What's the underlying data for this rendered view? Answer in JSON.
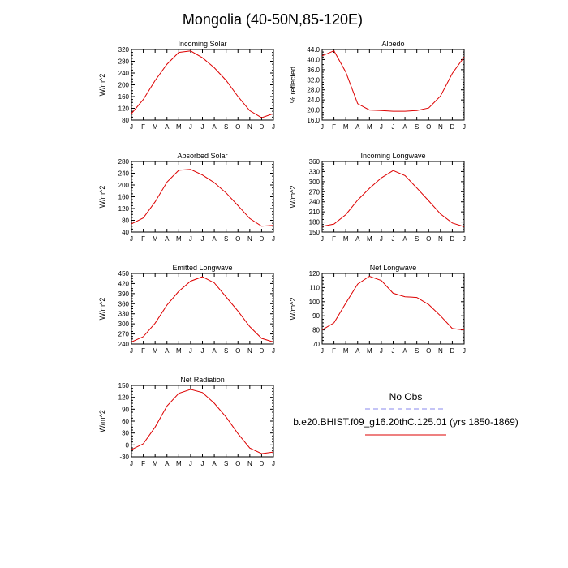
{
  "title": "Mongolia (40-50N,85-120E)",
  "legend": {
    "placement": "right-of-bottom-panel",
    "entries": [
      {
        "label": "No Obs",
        "color": "#8888ee",
        "dashed": true
      },
      {
        "label": "b.e20.BHIST.f09_g16.20thC.125.01 (yrs 1850-1869)",
        "color": "#dd0000",
        "dashed": false
      }
    ]
  },
  "chart_data": [
    {
      "type": "line",
      "title": "Incoming Solar",
      "ylabel": "W/m^2",
      "x": [
        "J",
        "F",
        "M",
        "A",
        "M",
        "J",
        "J",
        "A",
        "S",
        "O",
        "N",
        "D",
        "J"
      ],
      "ylim": [
        80,
        320
      ],
      "yticks": [
        "80",
        "120",
        "160",
        "200",
        "240",
        "280",
        "320"
      ],
      "series": [
        {
          "name": "b.e20.BHIST.f09_g16.20thC.125.01 (yrs 1850-1869)",
          "color": "#dd0000",
          "values": [
            102,
            150,
            215,
            270,
            310,
            315,
            292,
            258,
            215,
            160,
            112,
            88,
            102
          ]
        }
      ]
    },
    {
      "type": "line",
      "title": "Albedo",
      "ylabel": "% reflected",
      "x": [
        "J",
        "F",
        "M",
        "A",
        "M",
        "J",
        "J",
        "A",
        "S",
        "O",
        "N",
        "D",
        "J"
      ],
      "ylim": [
        16.0,
        44.0
      ],
      "yticks": [
        "16.0",
        "20.0",
        "24.0",
        "28.0",
        "32.0",
        "36.0",
        "40.0",
        "44.0"
      ],
      "series": [
        {
          "name": "b.e20.BHIST.f09_g16.20thC.125.01 (yrs 1850-1869)",
          "color": "#dd0000",
          "values": [
            41.5,
            43.5,
            35.0,
            22.5,
            20.0,
            19.8,
            19.5,
            19.5,
            19.8,
            20.8,
            25.5,
            34.5,
            41.0
          ]
        }
      ]
    },
    {
      "type": "line",
      "title": "Absorbed Solar",
      "ylabel": "W/m^2",
      "x": [
        "J",
        "F",
        "M",
        "A",
        "M",
        "J",
        "J",
        "A",
        "S",
        "O",
        "N",
        "D",
        "J"
      ],
      "ylim": [
        40,
        280
      ],
      "yticks": [
        "40",
        "80",
        "120",
        "160",
        "200",
        "240",
        "280"
      ],
      "series": [
        {
          "name": "b.e20.BHIST.f09_g16.20thC.125.01 (yrs 1850-1869)",
          "color": "#dd0000",
          "values": [
            68,
            88,
            143,
            210,
            250,
            253,
            234,
            208,
            173,
            130,
            86,
            60,
            63
          ]
        }
      ]
    },
    {
      "type": "line",
      "title": "Incoming Longwave",
      "ylabel": "W/m^2",
      "x": [
        "J",
        "F",
        "M",
        "A",
        "M",
        "J",
        "J",
        "A",
        "S",
        "O",
        "N",
        "D",
        "J"
      ],
      "ylim": [
        150,
        360
      ],
      "yticks": [
        "150",
        "180",
        "210",
        "240",
        "270",
        "300",
        "330",
        "360"
      ],
      "series": [
        {
          "name": "b.e20.BHIST.f09_g16.20thC.125.01 (yrs 1850-1869)",
          "color": "#dd0000",
          "values": [
            167,
            174,
            202,
            245,
            280,
            311,
            333,
            318,
            281,
            243,
            204,
            177,
            166
          ]
        }
      ]
    },
    {
      "type": "line",
      "title": "Emitted Longwave",
      "ylabel": "W/m^2",
      "x": [
        "J",
        "F",
        "M",
        "A",
        "M",
        "J",
        "J",
        "A",
        "S",
        "O",
        "N",
        "D",
        "J"
      ],
      "ylim": [
        240,
        450
      ],
      "yticks": [
        "240",
        "270",
        "300",
        "330",
        "360",
        "390",
        "420",
        "450"
      ],
      "series": [
        {
          "name": "b.e20.BHIST.f09_g16.20thC.125.01 (yrs 1850-1869)",
          "color": "#dd0000",
          "values": [
            246,
            262,
            302,
            356,
            397,
            427,
            440,
            422,
            380,
            338,
            292,
            257,
            246
          ]
        }
      ]
    },
    {
      "type": "line",
      "title": "Net Longwave",
      "ylabel": "W/m^2",
      "x": [
        "J",
        "F",
        "M",
        "A",
        "M",
        "J",
        "J",
        "A",
        "S",
        "O",
        "N",
        "D",
        "J"
      ],
      "ylim": [
        70,
        120
      ],
      "yticks": [
        "70",
        "80",
        "90",
        "100",
        "110",
        "120"
      ],
      "series": [
        {
          "name": "b.e20.BHIST.f09_g16.20thC.125.01 (yrs 1850-1869)",
          "color": "#dd0000",
          "values": [
            80,
            85,
            99,
            112.5,
            118,
            115,
            106,
            103.5,
            103,
            98,
            90,
            81,
            80
          ]
        }
      ]
    },
    {
      "type": "line",
      "title": "Net Radiation",
      "ylabel": "W/m^2",
      "x": [
        "J",
        "F",
        "M",
        "A",
        "M",
        "J",
        "J",
        "A",
        "S",
        "O",
        "N",
        "D",
        "J"
      ],
      "ylim": [
        -30,
        150
      ],
      "yticks": [
        "-30",
        "0",
        "30",
        "60",
        "90",
        "120",
        "150"
      ],
      "series": [
        {
          "name": "b.e20.BHIST.f09_g16.20thC.125.01 (yrs 1850-1869)",
          "color": "#dd0000",
          "values": [
            -12,
            3,
            45,
            98,
            130,
            140,
            132,
            105,
            70,
            28,
            -8,
            -22,
            -18
          ]
        }
      ]
    }
  ]
}
